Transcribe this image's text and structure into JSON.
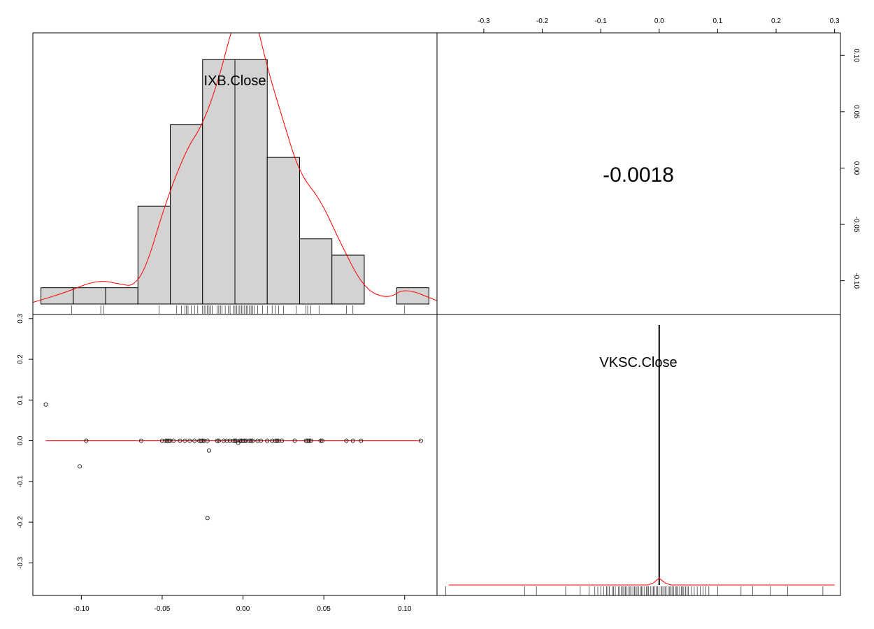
{
  "chart_data": {
    "type": "scatter",
    "title": "",
    "variables": [
      "IXB.Close",
      "VKSC.Close"
    ],
    "correlation": {
      "value": -0.0018,
      "label": "-0.0018"
    },
    "colors": {
      "density": "#ff0000",
      "hist_fill": "#d3d3d3",
      "axis": "#000000"
    },
    "axes": {
      "ixb": {
        "lim": [
          -0.13,
          0.12
        ],
        "ticks": [
          -0.1,
          -0.05,
          0.0,
          0.05,
          0.1
        ],
        "tick_labels": [
          "-0.10",
          "-0.05",
          "0.00",
          "0.05",
          "0.10"
        ]
      },
      "vksc": {
        "lim": [
          -0.38,
          0.31
        ],
        "ticks": [
          -0.3,
          -0.2,
          -0.1,
          0.0,
          0.1,
          0.2,
          0.3
        ],
        "tick_labels": [
          "-0.3",
          "-0.2",
          "-0.1",
          "0.0",
          "0.1",
          "0.2",
          "0.3"
        ]
      },
      "ixb_right": {
        "lim": [
          -0.13,
          0.12
        ],
        "ticks": [
          -0.1,
          -0.05,
          0.0,
          0.05,
          0.1
        ],
        "tick_labels": [
          "-0.10",
          "-0.05",
          "0.00",
          "0.05",
          "0.10"
        ]
      }
    },
    "ixb_histogram": {
      "breaks": [
        -0.125,
        -0.105,
        -0.085,
        -0.065,
        -0.045,
        -0.025,
        -0.005,
        0.015,
        0.035,
        0.055,
        0.075,
        0.095,
        0.115
      ],
      "counts": [
        1,
        1,
        1,
        6,
        11,
        15,
        15,
        9,
        4,
        3,
        0,
        1
      ],
      "ymax": 16,
      "density_curve": [
        [
          -0.13,
          0.1
        ],
        [
          -0.11,
          0.7
        ],
        [
          -0.09,
          1.5
        ],
        [
          -0.075,
          1.2
        ],
        [
          -0.068,
          1.1
        ],
        [
          -0.06,
          2.2
        ],
        [
          -0.048,
          6.2
        ],
        [
          -0.035,
          9.5
        ],
        [
          -0.025,
          11.0
        ],
        [
          -0.015,
          13.8
        ],
        [
          -0.008,
          16.5
        ],
        [
          0.0,
          19.0
        ],
        [
          0.008,
          17.5
        ],
        [
          0.015,
          14.5
        ],
        [
          0.025,
          11.2
        ],
        [
          0.035,
          8.0
        ],
        [
          0.048,
          6.4
        ],
        [
          0.06,
          3.8
        ],
        [
          0.075,
          0.9
        ],
        [
          0.09,
          0.3
        ],
        [
          0.1,
          1.0
        ],
        [
          0.12,
          0.2
        ]
      ],
      "rug": [
        -0.106,
        -0.088,
        -0.086,
        -0.052,
        -0.041,
        -0.038,
        -0.036,
        -0.035,
        -0.034,
        -0.032,
        -0.03,
        -0.028,
        -0.025,
        -0.024,
        -0.023,
        -0.022,
        -0.021,
        -0.02,
        -0.019,
        -0.016,
        -0.015,
        -0.014,
        -0.013,
        -0.011,
        -0.009,
        -0.008,
        -0.006,
        -0.005,
        -0.004,
        -0.003,
        -0.002,
        -0.001,
        0.0,
        0.001,
        0.002,
        0.003,
        0.004,
        0.005,
        0.006,
        0.007,
        0.009,
        0.012,
        0.015,
        0.018,
        0.02,
        0.022,
        0.025,
        0.033,
        0.039,
        0.04,
        0.042,
        0.047,
        0.064,
        0.068,
        0.1
      ]
    },
    "scatter_points": [
      [
        -0.122,
        0.089
      ],
      [
        -0.101,
        -0.063
      ],
      [
        -0.097,
        0.0
      ],
      [
        -0.063,
        0.0
      ],
      [
        -0.05,
        0.0
      ],
      [
        -0.048,
        0.0
      ],
      [
        -0.047,
        0.0
      ],
      [
        -0.046,
        0.0
      ],
      [
        -0.045,
        0.0
      ],
      [
        -0.043,
        0.0
      ],
      [
        -0.039,
        0.0
      ],
      [
        -0.036,
        0.0
      ],
      [
        -0.033,
        0.0
      ],
      [
        -0.03,
        0.0
      ],
      [
        -0.027,
        0.0
      ],
      [
        -0.026,
        0.0
      ],
      [
        -0.025,
        0.0
      ],
      [
        -0.024,
        0.0
      ],
      [
        -0.022,
        0.0
      ],
      [
        -0.021,
        -0.024
      ],
      [
        -0.022,
        -0.19
      ],
      [
        -0.016,
        0.0
      ],
      [
        -0.015,
        0.0
      ],
      [
        -0.012,
        0.0
      ],
      [
        -0.01,
        0.0
      ],
      [
        -0.008,
        0.0
      ],
      [
        -0.006,
        0.0
      ],
      [
        -0.005,
        0.0
      ],
      [
        -0.004,
        0.0
      ],
      [
        -0.003,
        -0.005
      ],
      [
        -0.002,
        0.0
      ],
      [
        -0.001,
        0.0
      ],
      [
        0.0,
        0.0
      ],
      [
        0.001,
        0.0
      ],
      [
        0.002,
        0.0
      ],
      [
        0.004,
        0.0
      ],
      [
        0.005,
        0.0
      ],
      [
        0.006,
        0.0
      ],
      [
        0.009,
        0.0
      ],
      [
        0.011,
        0.0
      ],
      [
        0.015,
        0.0
      ],
      [
        0.018,
        0.0
      ],
      [
        0.02,
        0.0
      ],
      [
        0.021,
        0.0
      ],
      [
        0.022,
        0.0
      ],
      [
        0.024,
        0.0
      ],
      [
        0.032,
        0.0
      ],
      [
        0.039,
        0.0
      ],
      [
        0.04,
        0.0
      ],
      [
        0.041,
        0.0
      ],
      [
        0.042,
        0.0
      ],
      [
        0.048,
        0.0
      ],
      [
        0.049,
        0.0
      ],
      [
        0.064,
        0.0
      ],
      [
        0.068,
        0.0
      ],
      [
        0.073,
        0.0
      ],
      [
        0.11,
        0.0
      ]
    ],
    "scatter_smooth": [
      [
        -0.122,
        0.0
      ],
      [
        0.11,
        0.0
      ]
    ],
    "vksc_histogram": {
      "spike_x": 0.0,
      "spike_top": 1.0,
      "density_curve": [
        [
          -0.36,
          0.0
        ],
        [
          -0.02,
          0.0
        ],
        [
          -0.01,
          0.02
        ],
        [
          -0.004,
          0.05
        ],
        [
          0.0,
          0.07
        ],
        [
          0.004,
          0.05
        ],
        [
          0.01,
          0.02
        ],
        [
          0.02,
          0.0
        ],
        [
          0.3,
          0.0
        ]
      ],
      "rug": [
        -0.365,
        -0.23,
        -0.21,
        -0.16,
        -0.135,
        -0.12,
        -0.11,
        -0.105,
        -0.1,
        -0.095,
        -0.09,
        -0.088,
        -0.085,
        -0.08,
        -0.078,
        -0.075,
        -0.07,
        -0.068,
        -0.065,
        -0.062,
        -0.06,
        -0.058,
        -0.055,
        -0.052,
        -0.05,
        -0.048,
        -0.045,
        -0.042,
        -0.04,
        -0.038,
        -0.035,
        -0.032,
        -0.03,
        -0.028,
        -0.025,
        -0.022,
        -0.02,
        -0.018,
        -0.015,
        -0.012,
        -0.01,
        -0.008,
        -0.005,
        -0.003,
        0.0,
        0.003,
        0.005,
        0.008,
        0.01,
        0.012,
        0.015,
        0.018,
        0.02,
        0.022,
        0.025,
        0.028,
        0.03,
        0.032,
        0.035,
        0.038,
        0.04,
        0.042,
        0.045,
        0.048,
        0.05,
        0.055,
        0.06,
        0.065,
        0.07,
        0.075,
        0.08,
        0.085,
        0.1,
        0.14,
        0.16,
        0.19,
        0.22,
        0.28
      ]
    }
  }
}
